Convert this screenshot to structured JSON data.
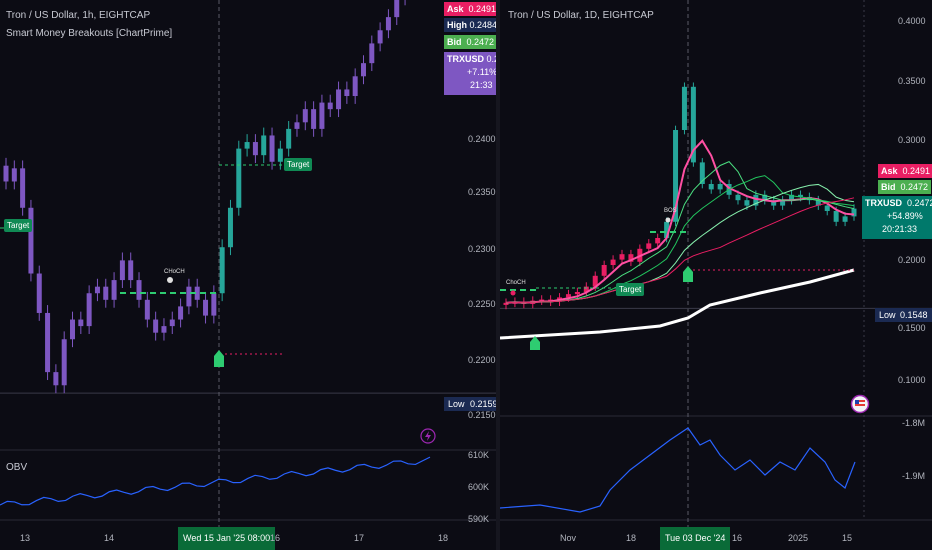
{
  "left": {
    "title": "Tron / US Dollar, 1h, EIGHTCAP",
    "indicator": "Smart Money Breakouts [ChartPrime]",
    "quote": {
      "ask_label": "Ask",
      "ask": "0.2491",
      "high_label": "High",
      "high": "0.2484",
      "bid_label": "Bid",
      "bid": "0.2472",
      "symbol": "TRXUSD",
      "price": "0.2472",
      "change": "+7.11%",
      "countdown": "21:33"
    },
    "y_ticks": [
      "0.2400",
      "0.2350",
      "0.2300",
      "0.2250",
      "0.2200",
      "0.2150"
    ],
    "low_label": "Low",
    "low_value": "0.2159",
    "obv_label": "OBV",
    "obv_ticks": [
      "610K",
      "600K",
      "590K"
    ],
    "x_ticks": [
      "13",
      "14",
      "16",
      "17",
      "18"
    ],
    "x_highlight": "Wed 15 Jan '25   08:00",
    "target_labels": [
      "Target",
      "Target"
    ],
    "choch_label": "CHoCH"
  },
  "right": {
    "title": "Tron / US Dollar, 1D, EIGHTCAP",
    "quote": {
      "ask_label": "Ask",
      "ask": "0.2491",
      "bid_label": "Bid",
      "bid": "0.2472",
      "symbol": "TRXUSD",
      "price": "0.2472",
      "change": "+54.89%",
      "countdown": "20:21:33"
    },
    "y_ticks": [
      "0.4000",
      "0.3500",
      "0.3000",
      "0.2500",
      "0.2000",
      "0.1500",
      "0.1000"
    ],
    "low_label": "Low",
    "low_value": "0.1548",
    "obv_ticks": [
      "-1.8M",
      "-1.9M"
    ],
    "x_ticks": [
      "Nov",
      "18",
      "16",
      "2025",
      "15"
    ],
    "x_highlight": "Tue 03 Dec '24",
    "target_label": "Target",
    "choch_label": "ChoCH",
    "bos_label": "BOS"
  },
  "colors": {
    "up_left": "#7e57c2",
    "up_right": "#26a69a",
    "ask": "#e91e63",
    "bid": "#4caf50",
    "symbol": "#7e57c2",
    "low": "#1b2a52",
    "obv": "#2962ff",
    "highlight": "#0a6b38"
  },
  "chart_data": [
    {
      "type": "candlestick",
      "title": "Tron / US Dollar, 1h, EIGHTCAP",
      "ylim": [
        0.215,
        0.242
      ],
      "x_ticks": [
        "13",
        "14",
        "Wed 15 Jan '25 08:00",
        "16",
        "17",
        "18"
      ],
      "close_series": [
        0.232,
        0.233,
        0.23,
        0.225,
        0.222,
        0.2175,
        0.2165,
        0.22,
        0.2215,
        0.221,
        0.2235,
        0.224,
        0.223,
        0.2245,
        0.226,
        0.2245,
        0.223,
        0.2215,
        0.2205,
        0.221,
        0.2215,
        0.2225,
        0.224,
        0.223,
        0.2218,
        0.2235,
        0.227,
        0.23,
        0.2345,
        0.235,
        0.234,
        0.2355,
        0.2335,
        0.2345,
        0.236,
        0.2365,
        0.2375,
        0.236,
        0.238,
        0.2375,
        0.239,
        0.2385,
        0.24,
        0.241,
        0.2425,
        0.2435,
        0.2445,
        0.246,
        0.247,
        0.2475,
        0.2465,
        0.2472
      ],
      "levels": {
        "low": 0.2159,
        "last": 0.2472
      }
    },
    {
      "type": "candlestick",
      "title": "Tron / US Dollar, 1D, EIGHTCAP",
      "ylim": [
        0.07,
        0.42
      ],
      "x_ticks": [
        "Nov",
        "18",
        "Tue 03 Dec '24",
        "16",
        "2025",
        "15"
      ],
      "close_series": [
        0.16,
        0.161,
        0.159,
        0.162,
        0.163,
        0.161,
        0.165,
        0.168,
        0.17,
        0.175,
        0.185,
        0.195,
        0.2,
        0.205,
        0.198,
        0.21,
        0.215,
        0.22,
        0.235,
        0.32,
        0.36,
        0.29,
        0.27,
        0.265,
        0.27,
        0.26,
        0.255,
        0.25,
        0.26,
        0.255,
        0.25,
        0.255,
        0.26,
        0.258,
        0.255,
        0.25,
        0.245,
        0.235,
        0.24,
        0.2472
      ],
      "levels": {
        "low": 0.1548,
        "last": 0.2472
      }
    }
  ]
}
